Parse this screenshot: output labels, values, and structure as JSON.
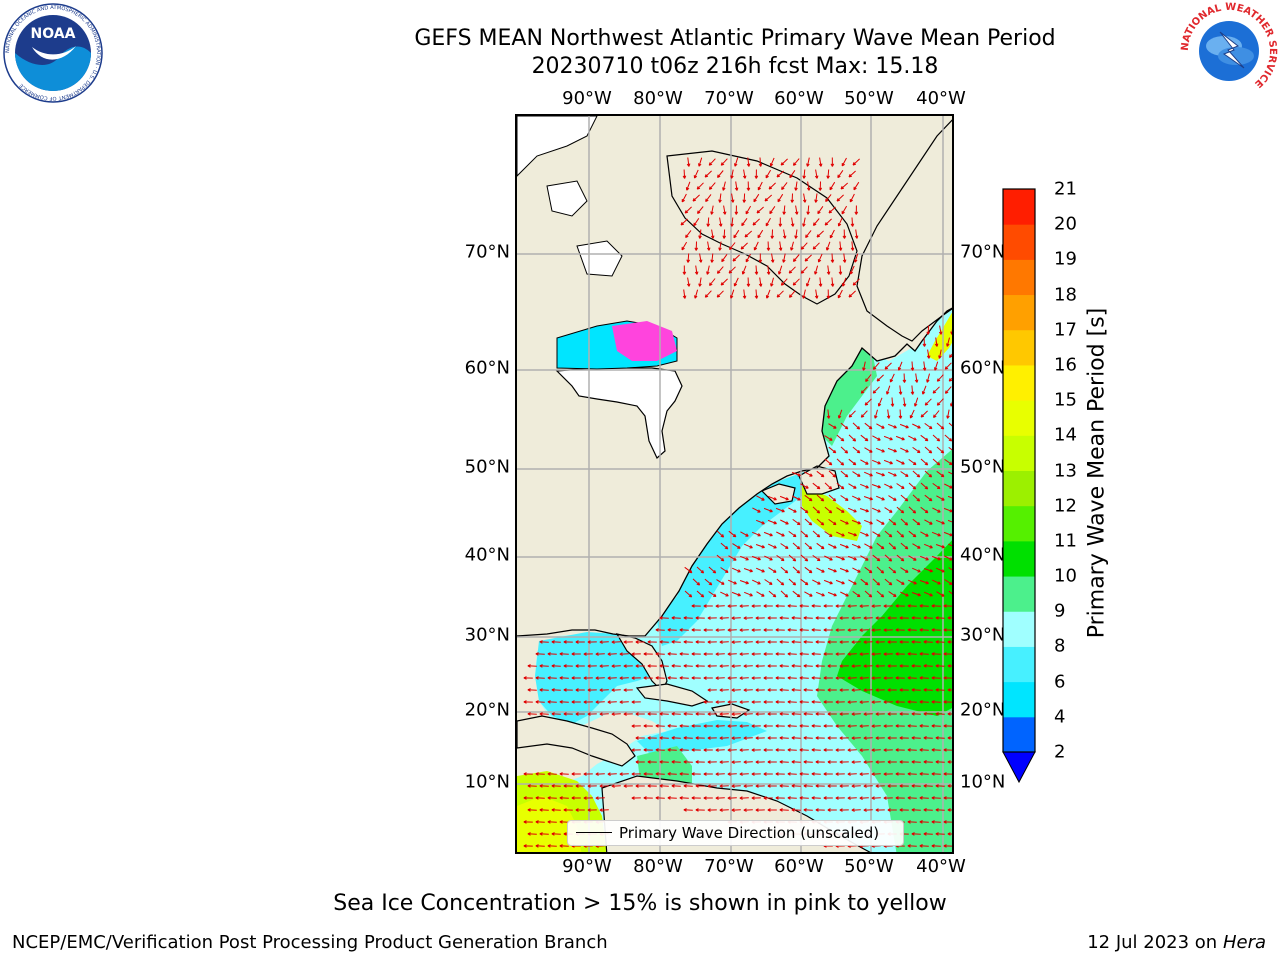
{
  "header": {
    "title_line1": "GEFS MEAN Northwest Atlantic Primary Wave Mean Period",
    "title_line2": "20230710 t06z 216h fcst   Max: 15.18"
  },
  "logos": {
    "noaa_text": "NOAA",
    "noaa_ring_text": "NATIONAL OCEANIC AND ATMOSPHERIC ADMINISTRATION · U.S. DEPARTMENT OF COMMERCE",
    "nws_ring_text": "NATIONAL WEATHER SERVICE"
  },
  "map": {
    "lon_ticks": [
      "90°W",
      "80°W",
      "70°W",
      "60°W",
      "50°W",
      "40°W"
    ],
    "lat_ticks": [
      "70°N",
      "60°N",
      "50°N",
      "40°N",
      "30°N",
      "20°N",
      "10°N"
    ],
    "legend_label": "Primary Wave Direction (unscaled)",
    "arrow_color": "#e00000",
    "land_color": "#efecda",
    "gridline_color": "#b0b0b0"
  },
  "colorbar": {
    "title": "Primary Wave Mean Period [s]",
    "levels": [
      "2",
      "4",
      "6",
      "8",
      "9",
      "10",
      "11",
      "12",
      "13",
      "14",
      "15",
      "16",
      "17",
      "18",
      "19",
      "20",
      "21"
    ],
    "colors": [
      "#0064ff",
      "#00e5ff",
      "#47f0ff",
      "#a0ffff",
      "#4cf08c",
      "#00e000",
      "#55f000",
      "#9cf000",
      "#c8ff00",
      "#e8ff00",
      "#fff000",
      "#ffc800",
      "#ffa000",
      "#ff7800",
      "#ff4b00",
      "#ff1e00"
    ],
    "under_color": "#0000ff"
  },
  "footer": {
    "note": "Sea Ice Concentration > 15% is shown in pink to yellow",
    "credit": "NCEP/EMC/Verification Post Processing Product Generation Branch",
    "date": "12 Jul 2023 on ",
    "machine": "Hera"
  }
}
